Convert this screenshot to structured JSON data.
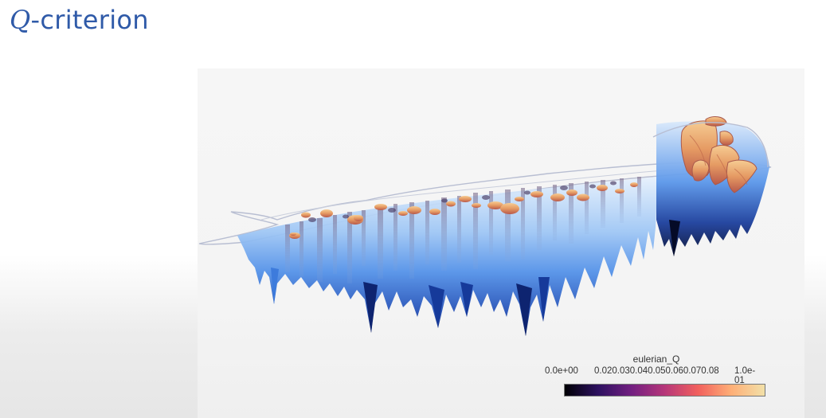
{
  "slide": {
    "title_symbol": "Q",
    "title_rest": "-criterion"
  },
  "colorbar": {
    "title": "eulerian_Q",
    "min_label": "0.0e+00",
    "mid_labels": "0.020.030.040.050.060.070.08",
    "max_label": "1.0e-01",
    "colors": [
      "#000004",
      "#2d1160",
      "#721f81",
      "#b63679",
      "#f1605d",
      "#feaf77",
      "#f2e0a8"
    ]
  },
  "colors": {
    "title": "#2f5aa8",
    "surface_light": "#cfe4fb",
    "surface_mid": "#6aa6ee",
    "surface_dark": "#0c1e5a",
    "vortex": "#e9a36a"
  }
}
